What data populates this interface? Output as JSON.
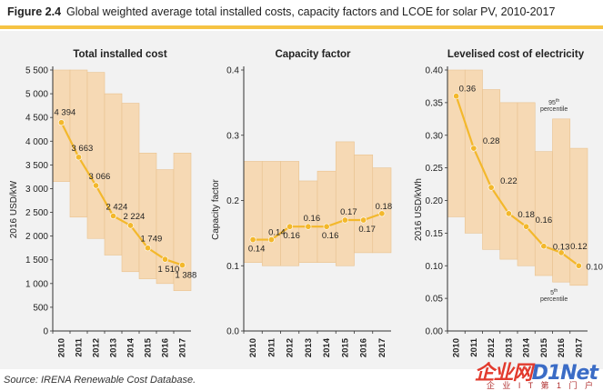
{
  "header": {
    "figure_label": "Figure 2.4",
    "title": "Global weighted average total installed costs, capacity factors and LCOE for solar PV, 2010-2017"
  },
  "source": "Source: IRENA Renewable Cost Database.",
  "watermark": {
    "main": "企业网",
    "brand": "D1Net",
    "sub": "企 业 I T 第 1 门 户"
  },
  "colors": {
    "band_fill": "#f6d9b4",
    "line": "#f3b82c",
    "marker": "#f3b82c",
    "accent_rule": "#f6c343",
    "panel_bg": "#f2f2f2"
  },
  "chart_data": [
    {
      "type": "line",
      "title": "Total installed cost",
      "ylabel": "2016 USD/kW",
      "ylim": [
        0,
        5500
      ],
      "yticks": [
        "0",
        "500",
        "1 000",
        "1 500",
        "2 000",
        "2 500",
        "3 000",
        "3 500",
        "4 000",
        "4 500",
        "5 000",
        "5 500"
      ],
      "ytick_values": [
        0,
        500,
        1000,
        1500,
        2000,
        2500,
        3000,
        3500,
        4000,
        4500,
        5000,
        5500
      ],
      "categories": [
        "2010",
        "2011",
        "2012",
        "2013",
        "2014",
        "2015",
        "2016",
        "2017"
      ],
      "values": [
        4394,
        3663,
        3066,
        2424,
        2224,
        1749,
        1510,
        1388
      ],
      "labels": [
        "4 394",
        "3 663",
        "3 066",
        "2 424",
        "2 224",
        "1 749",
        "1 510",
        "1 388"
      ],
      "band_high": [
        5500,
        5500,
        5450,
        5000,
        4800,
        3750,
        3400,
        3750
      ],
      "band_low": [
        3150,
        2400,
        1950,
        1600,
        1250,
        1100,
        1000,
        850
      ]
    },
    {
      "type": "line",
      "title": "Capacity factor",
      "ylabel": "Capacity factor",
      "ylim": [
        0,
        0.4
      ],
      "yticks": [
        "0.0",
        "0.1",
        "0.2",
        "0.3",
        "0.4"
      ],
      "ytick_values": [
        0,
        0.1,
        0.2,
        0.3,
        0.4
      ],
      "categories": [
        "2010",
        "2011",
        "2012",
        "2013",
        "2014",
        "2015",
        "2016",
        "2017"
      ],
      "values": [
        0.14,
        0.14,
        0.16,
        0.16,
        0.16,
        0.17,
        0.17,
        0.18
      ],
      "labels": [
        "0.14",
        "0.14",
        "0.16",
        "0.16",
        "0.16",
        "0.17",
        "0.17",
        "0.18"
      ],
      "band_high": [
        0.26,
        0.26,
        0.26,
        0.23,
        0.245,
        0.29,
        0.27,
        0.25
      ],
      "band_low": [
        0.105,
        0.1,
        0.1,
        0.105,
        0.105,
        0.1,
        0.12,
        0.12
      ]
    },
    {
      "type": "line",
      "title": "Levelised cost of electricity",
      "ylabel": "2016 USD/kWh",
      "ylim": [
        0,
        0.4
      ],
      "yticks": [
        "0.00",
        "0.05",
        "0.10",
        "0.15",
        "0.20",
        "0.25",
        "0.30",
        "0.35",
        "0.40"
      ],
      "ytick_values": [
        0,
        0.05,
        0.1,
        0.15,
        0.2,
        0.25,
        0.3,
        0.35,
        0.4
      ],
      "categories": [
        "2010",
        "2011",
        "2012",
        "2013",
        "2014",
        "2015",
        "2016",
        "2017"
      ],
      "values": [
        0.36,
        0.28,
        0.22,
        0.18,
        0.16,
        0.13,
        0.12,
        0.1
      ],
      "labels": [
        "0.36",
        "0.28",
        "0.22",
        "0.18",
        "0.16",
        "0.13",
        "0.12",
        "0.10"
      ],
      "band_high": [
        0.4,
        0.4,
        0.37,
        0.35,
        0.35,
        0.275,
        0.325,
        0.28
      ],
      "band_low": [
        0.175,
        0.15,
        0.125,
        0.11,
        0.1,
        0.085,
        0.075,
        0.07
      ],
      "annotations": [
        {
          "text_main": "95",
          "text_sup": "th",
          "text_rest": "percentile",
          "anchor": "top"
        },
        {
          "text_main": "5",
          "text_sup": "th",
          "text_rest": "percentile",
          "anchor": "bottom"
        }
      ]
    }
  ]
}
